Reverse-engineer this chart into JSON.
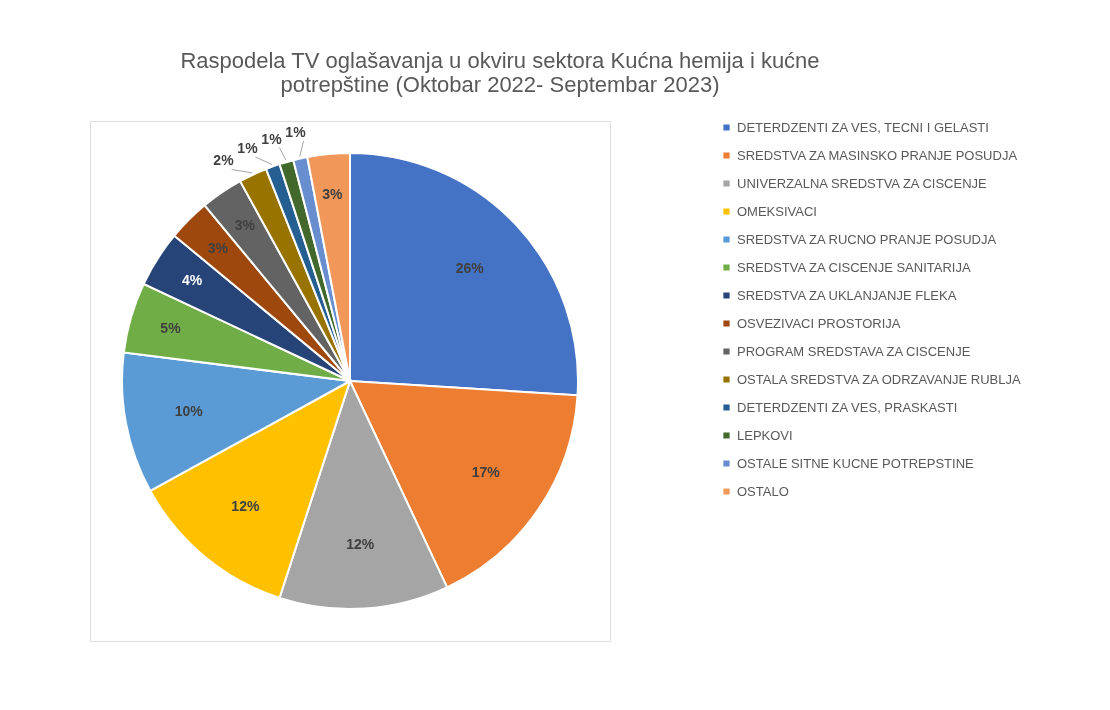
{
  "chart_data": {
    "type": "pie",
    "title": [
      "Raspodela TV oglašavanja u okviru sektora Kućna hemija i kućne",
      "potrepštine (Oktobar 2022- Septembar 2023)"
    ],
    "categories": [
      "DETERDZENTI ZA VES, TECNI I GELASTI",
      "SREDSTVA ZA MASINSKO PRANJE POSUDJA",
      "UNIVERZALNA SREDSTVA ZA CISCENJE",
      "OMEKSIVACI",
      "SREDSTVA ZA RUCNO PRANJE POSUDJA",
      "SREDSTVA ZA CISCENJE SANITARIJA",
      "SREDSTVA ZA UKLANJANJE FLEKA",
      "OSVEZIVACI PROSTORIJA",
      "PROGRAM SREDSTAVA ZA CISCENJE",
      "OSTALA SREDSTVA ZA ODRZAVANJE RUBLJA",
      "DETERDZENTI ZA VES, PRASKASTI",
      "LEPKOVI",
      "OSTALE SITNE KUCNE POTREPSTINE",
      "OSTALO"
    ],
    "values": [
      26,
      17,
      12,
      12,
      10,
      5,
      4,
      3,
      3,
      2,
      1,
      1,
      1,
      3
    ],
    "value_labels": [
      "26%",
      "17%",
      "12%",
      "12%",
      "10%",
      "5%",
      "4%",
      "3%",
      "3%",
      "2%",
      "1%",
      "1%",
      "1%",
      "3%"
    ],
    "colors": [
      "#4472c4",
      "#ed7d31",
      "#a5a5a5",
      "#ffc000",
      "#5b9bd5",
      "#70ad47",
      "#264478",
      "#9e480e",
      "#636363",
      "#997300",
      "#255e91",
      "#43682b",
      "#698ed0",
      "#f1975a"
    ],
    "legend": "right"
  }
}
